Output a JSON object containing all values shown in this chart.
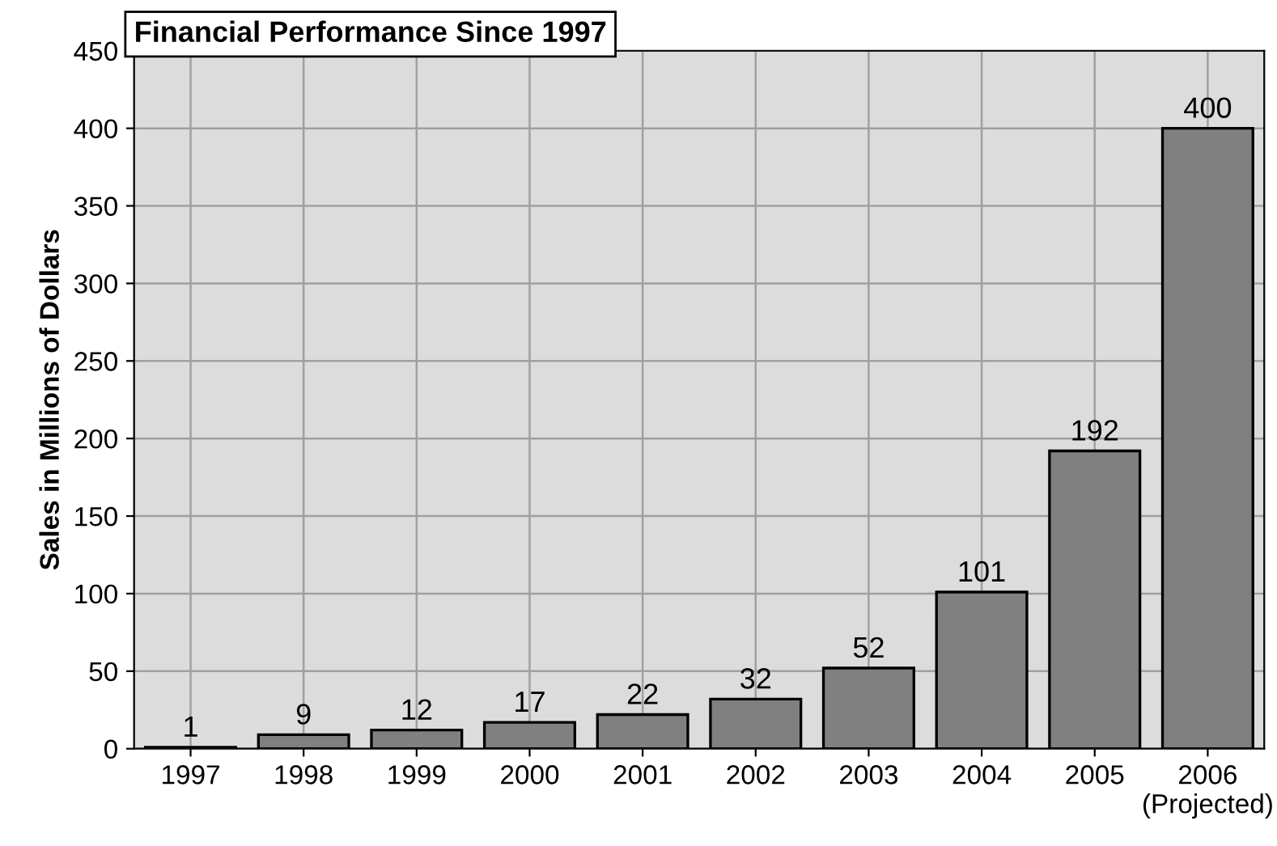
{
  "chart_data": {
    "type": "bar",
    "title": "Financial Performance Since 1997",
    "ylabel": "Sales in Millions of Dollars",
    "categories": [
      "1997",
      "1998",
      "1999",
      "2000",
      "2001",
      "2002",
      "2003",
      "2004",
      "2005",
      "2006\n(Projected)"
    ],
    "values": [
      1,
      9,
      12,
      17,
      22,
      32,
      52,
      101,
      192,
      400
    ],
    "color": "#808080",
    "ylim": [
      0,
      450
    ],
    "yticks": [
      0,
      50,
      100,
      150,
      200,
      250,
      300,
      350,
      400,
      450
    ],
    "grid": true,
    "data_labels": true
  }
}
